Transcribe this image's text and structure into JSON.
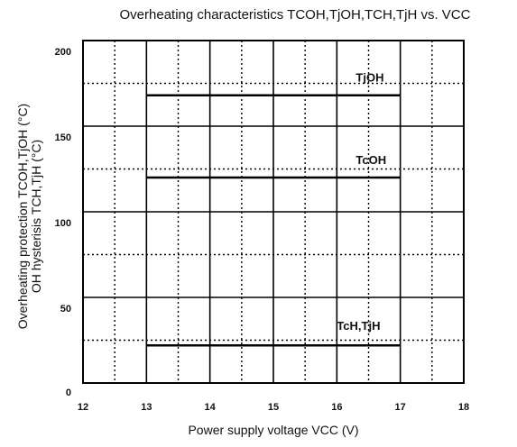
{
  "chart_data": {
    "type": "line",
    "title": "Overheating characteristics TCOH,TjOH,TCH,TjH vs. VCC",
    "xlabel": "Power supply voltage  VCC (V)",
    "ylabel_line1": "Overheating protection TCOH,TjOH (°C)",
    "ylabel_line2": "OH hysterisis TCH,TjH  (°C)",
    "xlim": [
      12,
      18
    ],
    "ylim": [
      0,
      200
    ],
    "x_ticks": [
      "12",
      "13",
      "14",
      "15",
      "16",
      "17",
      "18"
    ],
    "y_ticks": [
      "0",
      "50",
      "100",
      "150",
      "200"
    ],
    "grid": true,
    "series": [
      {
        "name": "TjOH",
        "x": [
          13,
          17
        ],
        "y": [
          168,
          168
        ],
        "label_x": 16.3,
        "label_y": 176
      },
      {
        "name": "TcOH",
        "x": [
          13,
          17
        ],
        "y": [
          120,
          120
        ],
        "label_x": 16.3,
        "label_y": 128
      },
      {
        "name": "TcH,TjH",
        "x": [
          13,
          17
        ],
        "y": [
          22,
          22
        ],
        "label_x": 16.0,
        "label_y": 31
      }
    ],
    "colors": {
      "line": "#000000",
      "grid": "#000000",
      "text": "#111111"
    }
  }
}
